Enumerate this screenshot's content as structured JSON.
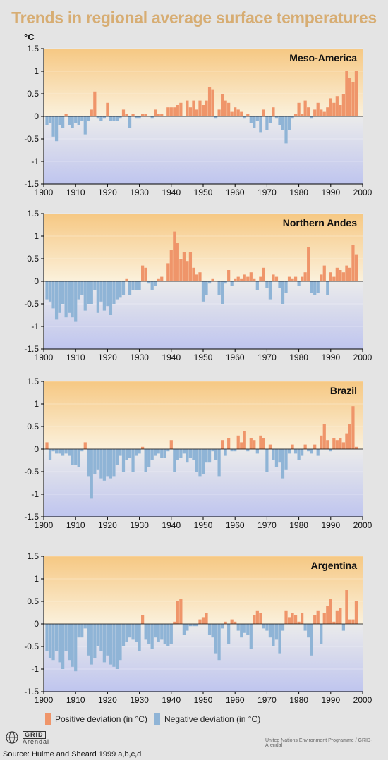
{
  "title": "Trends in regional average surface temperatures",
  "source": "Source: Hulme and Sheard 1999 a,b,c,d",
  "credit": "United Nations Environment Programme / GRID-Arendal",
  "logos": {
    "unep": "UNEP",
    "grid": "GRID",
    "arendal": "Arendal"
  },
  "legend": {
    "positive": "Positive deviation (in °C)",
    "negative": "Negative deviation (in °C)"
  },
  "colors": {
    "positive": "#ef956a",
    "negative": "#8fb4d6"
  },
  "chart_data": [
    {
      "type": "bar",
      "title": "Meso-America",
      "ylabel": "°C",
      "xlim": [
        1900,
        2000
      ],
      "ylim": [
        -1.5,
        1.5
      ],
      "xticks": [
        1900,
        1910,
        1920,
        1930,
        1940,
        1950,
        1960,
        1970,
        1980,
        1990,
        2000
      ],
      "yticks": [
        1.5,
        1,
        0.5,
        0,
        -0.5,
        -1,
        -1.5
      ],
      "x": [
        1901,
        1902,
        1903,
        1904,
        1905,
        1906,
        1907,
        1908,
        1909,
        1910,
        1911,
        1912,
        1913,
        1914,
        1915,
        1916,
        1917,
        1918,
        1919,
        1920,
        1921,
        1922,
        1923,
        1924,
        1925,
        1926,
        1927,
        1928,
        1929,
        1930,
        1931,
        1932,
        1933,
        1934,
        1935,
        1936,
        1937,
        1938,
        1939,
        1940,
        1941,
        1942,
        1943,
        1944,
        1945,
        1946,
        1947,
        1948,
        1949,
        1950,
        1951,
        1952,
        1953,
        1954,
        1955,
        1956,
        1957,
        1958,
        1959,
        1960,
        1961,
        1962,
        1963,
        1964,
        1965,
        1966,
        1967,
        1968,
        1969,
        1970,
        1971,
        1972,
        1973,
        1974,
        1975,
        1976,
        1977,
        1978,
        1979,
        1980,
        1981,
        1982,
        1983,
        1984,
        1985,
        1986,
        1987,
        1988,
        1989,
        1990,
        1991,
        1992,
        1993,
        1994,
        1995,
        1996,
        1997,
        1998
      ],
      "values": [
        -0.2,
        -0.15,
        -0.45,
        -0.55,
        -0.2,
        -0.25,
        0.05,
        -0.2,
        -0.25,
        -0.15,
        -0.2,
        -0.1,
        -0.4,
        -0.1,
        0.15,
        0.55,
        -0.05,
        -0.1,
        -0.05,
        0.3,
        -0.1,
        -0.1,
        -0.1,
        -0.05,
        0.15,
        0.05,
        -0.25,
        0.05,
        -0.05,
        -0.05,
        0.05,
        0.05,
        0.0,
        -0.05,
        0.15,
        0.05,
        0.05,
        0.0,
        0.2,
        0.2,
        0.2,
        0.25,
        0.3,
        0.0,
        0.35,
        0.2,
        0.35,
        0.15,
        0.35,
        0.25,
        0.35,
        0.65,
        0.6,
        -0.05,
        0.15,
        0.5,
        0.35,
        0.3,
        0.1,
        0.2,
        0.15,
        0.1,
        -0.05,
        0.05,
        -0.15,
        -0.25,
        -0.1,
        -0.35,
        0.15,
        -0.3,
        -0.15,
        0.2,
        -0.05,
        -0.2,
        -0.3,
        -0.6,
        -0.3,
        -0.05,
        0.05,
        0.3,
        0.05,
        0.35,
        0.2,
        -0.05,
        0.15,
        0.3,
        0.15,
        0.1,
        0.2,
        0.4,
        0.3,
        0.45,
        0.25,
        0.5,
        1.0,
        0.85,
        0.75,
        1.0
      ]
    },
    {
      "type": "bar",
      "title": "Northern Andes",
      "xlim": [
        1900,
        2000
      ],
      "ylim": [
        -1.5,
        1.5
      ],
      "xticks": [
        1900,
        1910,
        1920,
        1930,
        1940,
        1950,
        1960,
        1970,
        1980,
        1990,
        2000
      ],
      "yticks": [
        1.5,
        1,
        0.5,
        0,
        -0.5,
        -1,
        -1.5
      ],
      "x": [
        1901,
        1902,
        1903,
        1904,
        1905,
        1906,
        1907,
        1908,
        1909,
        1910,
        1911,
        1912,
        1913,
        1914,
        1915,
        1916,
        1917,
        1918,
        1919,
        1920,
        1921,
        1922,
        1923,
        1924,
        1925,
        1926,
        1927,
        1928,
        1929,
        1930,
        1931,
        1932,
        1933,
        1934,
        1935,
        1936,
        1937,
        1938,
        1939,
        1940,
        1941,
        1942,
        1943,
        1944,
        1945,
        1946,
        1947,
        1948,
        1949,
        1950,
        1951,
        1952,
        1953,
        1954,
        1955,
        1956,
        1957,
        1958,
        1959,
        1960,
        1961,
        1962,
        1963,
        1964,
        1965,
        1966,
        1967,
        1968,
        1969,
        1970,
        1971,
        1972,
        1973,
        1974,
        1975,
        1976,
        1977,
        1978,
        1979,
        1980,
        1981,
        1982,
        1983,
        1984,
        1985,
        1986,
        1987,
        1988,
        1989,
        1990,
        1991,
        1992,
        1993,
        1994,
        1995,
        1996,
        1997,
        1998
      ],
      "values": [
        -0.4,
        -0.45,
        -0.6,
        -0.85,
        -0.7,
        -0.5,
        -0.8,
        -0.7,
        -0.8,
        -0.9,
        -0.4,
        -0.3,
        -0.65,
        -0.5,
        -0.5,
        -0.2,
        -0.7,
        -0.45,
        -0.65,
        -0.55,
        -0.75,
        -0.5,
        -0.4,
        -0.35,
        -0.3,
        0.05,
        -0.3,
        -0.2,
        -0.2,
        -0.2,
        0.35,
        0.3,
        -0.05,
        -0.2,
        -0.1,
        0.05,
        0.1,
        0.0,
        0.4,
        0.7,
        1.1,
        0.85,
        0.5,
        0.65,
        0.45,
        0.65,
        0.3,
        0.15,
        0.2,
        -0.45,
        -0.3,
        -0.05,
        0.05,
        0.0,
        -0.3,
        -0.5,
        -0.05,
        0.25,
        -0.1,
        0.05,
        0.1,
        0.05,
        0.15,
        0.1,
        0.2,
        0.05,
        -0.2,
        0.1,
        0.3,
        -0.15,
        -0.4,
        0.15,
        0.1,
        -0.15,
        -0.5,
        -0.25,
        0.1,
        0.05,
        0.1,
        -0.1,
        0.1,
        0.2,
        0.75,
        -0.25,
        -0.3,
        -0.25,
        0.15,
        0.35,
        -0.3,
        0.2,
        0.1,
        0.3,
        0.25,
        0.2,
        0.35,
        0.3,
        0.8,
        0.6
      ]
    },
    {
      "type": "bar",
      "title": "Brazil",
      "xlim": [
        1900,
        2000
      ],
      "ylim": [
        -1.5,
        1.5
      ],
      "xticks": [
        1900,
        1910,
        1920,
        1930,
        1940,
        1950,
        1960,
        1970,
        1980,
        1990,
        2000
      ],
      "yticks": [
        1.5,
        1,
        0.5,
        0,
        -0.5,
        -1,
        -1.5
      ],
      "x": [
        1901,
        1902,
        1903,
        1904,
        1905,
        1906,
        1907,
        1908,
        1909,
        1910,
        1911,
        1912,
        1913,
        1914,
        1915,
        1916,
        1917,
        1918,
        1919,
        1920,
        1921,
        1922,
        1923,
        1924,
        1925,
        1926,
        1927,
        1928,
        1929,
        1930,
        1931,
        1932,
        1933,
        1934,
        1935,
        1936,
        1937,
        1938,
        1939,
        1940,
        1941,
        1942,
        1943,
        1944,
        1945,
        1946,
        1947,
        1948,
        1949,
        1950,
        1951,
        1952,
        1953,
        1954,
        1955,
        1956,
        1957,
        1958,
        1959,
        1960,
        1961,
        1962,
        1963,
        1964,
        1965,
        1966,
        1967,
        1968,
        1969,
        1970,
        1971,
        1972,
        1973,
        1974,
        1975,
        1976,
        1977,
        1978,
        1979,
        1980,
        1981,
        1982,
        1983,
        1984,
        1985,
        1986,
        1987,
        1988,
        1989,
        1990,
        1991,
        1992,
        1993,
        1994,
        1995,
        1996,
        1997,
        1998
      ],
      "values": [
        0.15,
        -0.25,
        -0.05,
        -0.1,
        -0.1,
        -0.15,
        -0.1,
        -0.15,
        -0.35,
        -0.35,
        -0.4,
        -0.05,
        0.15,
        -0.6,
        -1.1,
        -0.55,
        -0.45,
        -0.65,
        -0.7,
        -0.6,
        -0.65,
        -0.6,
        -0.35,
        -0.15,
        -0.5,
        -0.25,
        -0.2,
        -0.5,
        -0.15,
        -0.1,
        0.05,
        -0.5,
        -0.4,
        -0.25,
        -0.15,
        -0.1,
        -0.2,
        -0.2,
        -0.05,
        0.2,
        -0.5,
        -0.25,
        -0.2,
        -0.1,
        -0.3,
        -0.2,
        -0.25,
        -0.5,
        -0.6,
        -0.55,
        -0.3,
        -0.3,
        -0.05,
        -0.25,
        -0.6,
        0.2,
        -0.15,
        0.25,
        -0.05,
        -0.05,
        0.3,
        0.15,
        0.4,
        -0.05,
        0.25,
        0.2,
        -0.1,
        0.3,
        0.25,
        -0.5,
        0.1,
        -0.25,
        -0.4,
        -0.3,
        -0.65,
        -0.45,
        -0.1,
        0.1,
        -0.1,
        -0.25,
        -0.15,
        0.1,
        -0.05,
        -0.1,
        0.1,
        -0.15,
        0.3,
        0.55,
        0.2,
        -0.05,
        0.25,
        0.2,
        0.25,
        0.15,
        0.35,
        0.55,
        0.95,
        0.05
      ]
    },
    {
      "type": "bar",
      "title": "Argentina",
      "xlim": [
        1900,
        2000
      ],
      "ylim": [
        -1.5,
        1.5
      ],
      "xticks": [
        1900,
        1910,
        1920,
        1930,
        1940,
        1950,
        1960,
        1970,
        1980,
        1990,
        2000
      ],
      "yticks": [
        1.5,
        1,
        0.5,
        0,
        -0.5,
        -1,
        -1.5
      ],
      "x": [
        1901,
        1902,
        1903,
        1904,
        1905,
        1906,
        1907,
        1908,
        1909,
        1910,
        1911,
        1912,
        1913,
        1914,
        1915,
        1916,
        1917,
        1918,
        1919,
        1920,
        1921,
        1922,
        1923,
        1924,
        1925,
        1926,
        1927,
        1928,
        1929,
        1930,
        1931,
        1932,
        1933,
        1934,
        1935,
        1936,
        1937,
        1938,
        1939,
        1940,
        1941,
        1942,
        1943,
        1944,
        1945,
        1946,
        1947,
        1948,
        1949,
        1950,
        1951,
        1952,
        1953,
        1954,
        1955,
        1956,
        1957,
        1958,
        1959,
        1960,
        1961,
        1962,
        1963,
        1964,
        1965,
        1966,
        1967,
        1968,
        1969,
        1970,
        1971,
        1972,
        1973,
        1974,
        1975,
        1976,
        1977,
        1978,
        1979,
        1980,
        1981,
        1982,
        1983,
        1984,
        1985,
        1986,
        1987,
        1988,
        1989,
        1990,
        1991,
        1992,
        1993,
        1994,
        1995,
        1996,
        1997,
        1998
      ],
      "values": [
        -0.6,
        -0.75,
        -0.8,
        -0.6,
        -0.85,
        -1.0,
        -0.6,
        -0.8,
        -0.95,
        -1.05,
        -0.3,
        -0.3,
        -0.1,
        -0.7,
        -0.9,
        -0.75,
        -0.5,
        -0.6,
        -0.85,
        -0.7,
        -0.9,
        -0.95,
        -1.0,
        -0.8,
        -0.5,
        -0.4,
        -0.3,
        -0.35,
        -0.4,
        -0.6,
        0.2,
        -0.35,
        -0.45,
        -0.55,
        -0.3,
        -0.4,
        -0.35,
        -0.45,
        -0.5,
        -0.45,
        0.05,
        0.5,
        0.55,
        -0.25,
        -0.15,
        -0.05,
        -0.05,
        -0.05,
        0.1,
        0.15,
        0.25,
        -0.25,
        -0.3,
        -0.65,
        -0.8,
        -0.1,
        0.05,
        -0.45,
        0.1,
        0.05,
        -0.15,
        -0.3,
        -0.2,
        -0.25,
        -0.55,
        0.2,
        0.3,
        0.25,
        -0.1,
        -0.15,
        -0.3,
        -0.5,
        -0.35,
        -0.65,
        -0.15,
        0.3,
        0.15,
        0.25,
        0.2,
        0.05,
        0.25,
        -0.15,
        -0.3,
        -0.7,
        0.2,
        0.3,
        -0.45,
        0.25,
        0.4,
        0.55,
        0.05,
        0.3,
        0.35,
        -0.15,
        0.75,
        0.1,
        0.1,
        0.5
      ]
    }
  ]
}
